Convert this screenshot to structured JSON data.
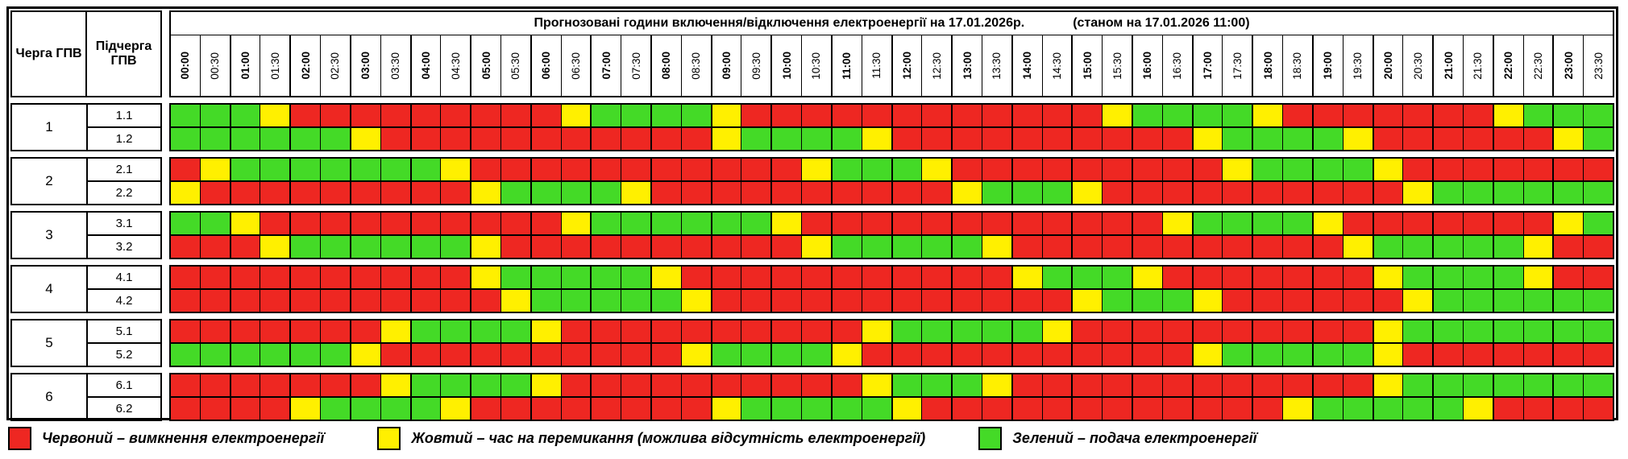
{
  "header": {
    "queue_col": "Черга ГПВ",
    "subqueue_col": "Підчерга ГПВ",
    "title": "Прогнозовані години включення/відключення електроенергії на 17.01.2026р.",
    "subtitle": "(станом на 17.01.2026 11:00)"
  },
  "colors": {
    "R": "#ee2722",
    "Y": "#fff000",
    "G": "#44da27"
  },
  "chart_data": {
    "type": "heatmap",
    "title": "Прогнозовані години включення/відключення електроенергії на 17.01.2026р.",
    "subtitle": "(станом на 17.01.2026 11:00)",
    "x": [
      "00:00",
      "00:30",
      "01:00",
      "01:30",
      "02:00",
      "02:30",
      "03:00",
      "03:30",
      "04:00",
      "04:30",
      "05:00",
      "05:30",
      "06:00",
      "06:30",
      "07:00",
      "07:30",
      "08:00",
      "08:30",
      "09:00",
      "09:30",
      "10:00",
      "10:30",
      "11:00",
      "11:30",
      "12:00",
      "12:30",
      "13:00",
      "13:30",
      "14:00",
      "14:30",
      "15:00",
      "15:30",
      "16:00",
      "16:30",
      "17:00",
      "17:30",
      "18:00",
      "18:30",
      "19:00",
      "19:30",
      "20:00",
      "20:30",
      "21:00",
      "21:30",
      "22:00",
      "22:30",
      "23:00",
      "23:30"
    ],
    "value_meaning": {
      "R": "вимкнення електроенергії",
      "Y": "час на перемикання",
      "G": "подача електроенергії"
    },
    "groups": [
      {
        "queue": "1",
        "rows": [
          {
            "label": "1.1",
            "slots": "GGGYRRRRRRRRRYGGGGYRRRRRRRRRRRRYGGGGYRRRRRRRYGGG"
          },
          {
            "label": "1.2",
            "slots": "GGGGGGYRRRRRRRRRRRYGGGGYRRRRRRRRRRYGGGGYRRRRRRYG"
          }
        ]
      },
      {
        "queue": "2",
        "rows": [
          {
            "label": "2.1",
            "slots": "RYGGGGGGGYRRRRRRRRRRRYGGGYRRRRRRRRRYGGGGYRRRRRRR"
          },
          {
            "label": "2.2",
            "slots": "YRRRRRRRRRYGGGGYRRRRRRRRRRYGGGYRRRRRRRRRRYGGGGGG"
          }
        ]
      },
      {
        "queue": "3",
        "rows": [
          {
            "label": "3.1",
            "slots": "GGYRRRRRRRRRRYGGGGGGYRRRRRRRRRRRRYGGGGYRRRRRRRYG"
          },
          {
            "label": "3.2",
            "slots": "RRRYGGGGGGYRRRRRRRRRRYGGGGGYRRRRRRRRRRRYGGGGGYRR"
          }
        ]
      },
      {
        "queue": "4",
        "rows": [
          {
            "label": "4.1",
            "slots": "RRRRRRRRRRYGGGGGYRRRRRRRRRRRYGGGYRRRRRRRYGGGGYRR"
          },
          {
            "label": "4.2",
            "slots": "RRRRRRRRRRRYGGGGGYRRRRRRRRRRRRYGGGYRRRRRRYGGGGGG"
          }
        ]
      },
      {
        "queue": "5",
        "rows": [
          {
            "label": "5.1",
            "slots": "RRRRRRRYGGGGYRRRRRRRRRRYGGGGGYRRRRRRRRRRYGGGGGGG"
          },
          {
            "label": "5.2",
            "slots": "GGGGGGYRRRRRRRRRRYGGGGYRRRRRRRRRRRYGGGGGYRRRRRRR"
          }
        ]
      },
      {
        "queue": "6",
        "rows": [
          {
            "label": "6.1",
            "slots": "RRRRRRRYGGGGYRRRRRRRRRRYGGGYRRRRRRRRRRRRYGGGGGGG"
          },
          {
            "label": "6.2",
            "slots": "RRRRYGGGGYRRRRRRRRYGGGGGYRRRRRRRRRRRRYGGGGGYRRRR"
          }
        ]
      }
    ]
  },
  "legend": {
    "items": [
      {
        "key": "R",
        "color": "#ee2722",
        "label": "Червоний – вимкнення електроенергії"
      },
      {
        "key": "Y",
        "color": "#fff000",
        "label": "Жовтий – час на перемикання (можлива відсутність електроенергії)"
      },
      {
        "key": "G",
        "color": "#44da27",
        "label": "Зелений – подача електроенергії"
      }
    ]
  }
}
